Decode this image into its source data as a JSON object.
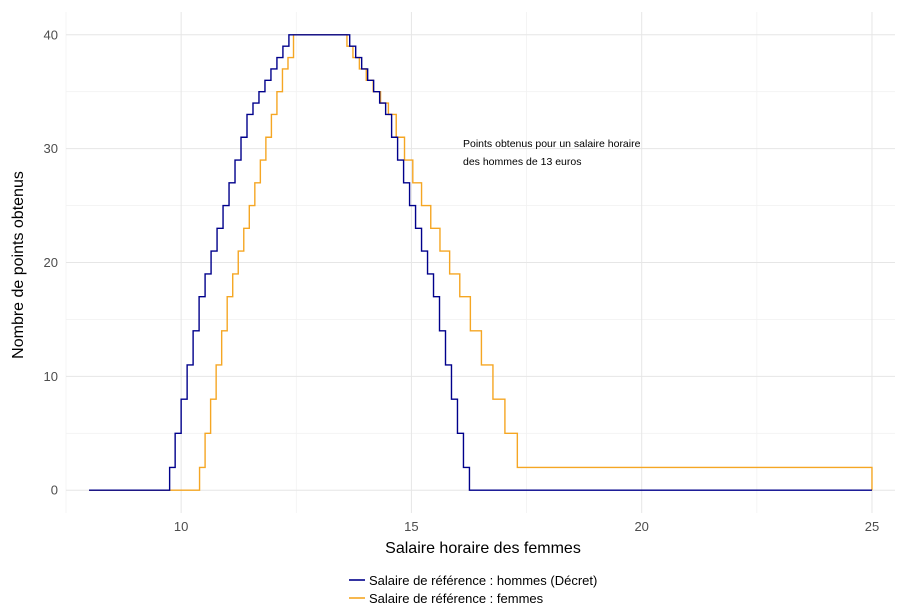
{
  "chart_data": {
    "type": "line",
    "title": "",
    "xlabel": "Salaire horaire des femmes",
    "ylabel": "Nombre de points obtenus",
    "xlim": [
      7.5,
      25.5
    ],
    "ylim": [
      -2,
      42
    ],
    "x_ticks": [
      10,
      15,
      20,
      25
    ],
    "y_ticks": [
      0,
      10,
      20,
      30,
      40
    ],
    "x_minor_ticks": [
      7.5,
      12.5,
      17.5,
      22.5
    ],
    "y_minor_ticks": [
      5,
      15,
      25,
      35
    ],
    "grid": true,
    "legend_position": "bottom",
    "annotation": {
      "lines": [
        "Points obtenus pour un salaire horaire",
        "des hommes de 13 euros"
      ],
      "x": 16.0,
      "y": 30.5
    },
    "series": [
      {
        "name": "Salaire de référence : hommes (Décret)",
        "color": "#00008B",
        "x": [
          8.0,
          9.75,
          9.87,
          10.0,
          10.13,
          10.26,
          10.39,
          10.52,
          10.65,
          10.78,
          10.91,
          11.04,
          11.17,
          11.3,
          11.43,
          11.56,
          11.69,
          11.82,
          11.95,
          12.08,
          12.21,
          12.34,
          13.66,
          13.79,
          13.92,
          14.05,
          14.18,
          14.31,
          14.44,
          14.57,
          14.7,
          14.83,
          14.96,
          15.09,
          15.22,
          15.35,
          15.48,
          15.61,
          15.74,
          15.87,
          16.0,
          16.13,
          16.26,
          25.0
        ],
        "y": [
          0,
          2,
          5,
          8,
          11,
          14,
          17,
          19,
          21,
          23,
          25,
          27,
          29,
          31,
          33,
          34,
          35,
          36,
          37,
          38,
          39,
          40,
          39,
          38,
          37,
          36,
          35,
          34,
          33,
          31,
          29,
          27,
          25,
          23,
          21,
          19,
          17,
          14,
          11,
          8,
          5,
          2,
          0,
          0
        ]
      },
      {
        "name": "Salaire de référence : femmes",
        "color": "#F5A623",
        "x": [
          8.0,
          10.4,
          10.52,
          10.64,
          10.76,
          10.88,
          11.0,
          11.12,
          11.24,
          11.36,
          11.48,
          11.6,
          11.72,
          11.84,
          11.96,
          12.08,
          12.2,
          12.32,
          12.44,
          13.6,
          13.73,
          13.87,
          14.02,
          14.17,
          14.33,
          14.5,
          14.67,
          14.85,
          15.03,
          15.22,
          15.42,
          15.62,
          15.83,
          16.05,
          16.28,
          16.52,
          16.77,
          17.03,
          17.3,
          25.0
        ],
        "y": [
          0,
          2,
          5,
          8,
          11,
          14,
          17,
          19,
          21,
          23,
          25,
          27,
          29,
          31,
          33,
          35,
          37,
          38,
          40,
          39,
          38,
          37,
          36,
          35,
          34,
          33,
          31,
          29,
          27,
          25,
          23,
          21,
          19,
          17,
          14,
          11,
          8,
          5,
          2,
          0
        ]
      }
    ]
  }
}
